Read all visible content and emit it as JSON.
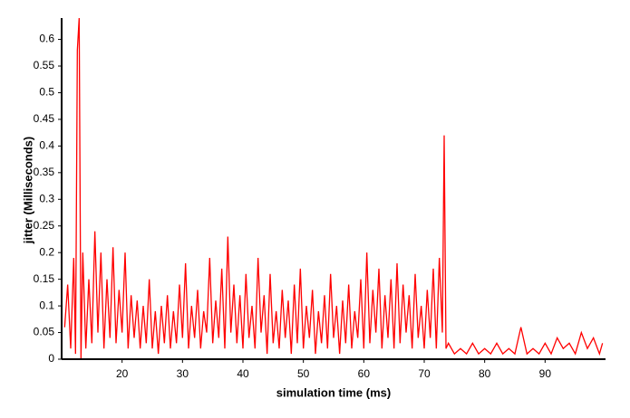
{
  "chart_data": {
    "type": "line",
    "x_label": "simulation time (ms)",
    "y_label": "jitter (Milliseconds)",
    "color": "#ff0000",
    "xlim": [
      10,
      100
    ],
    "xticks": [
      20,
      30,
      40,
      50,
      60,
      70,
      80,
      90
    ],
    "ylim": [
      0,
      0.64
    ],
    "yticks": [
      0,
      0.05,
      0.1,
      0.15,
      0.2,
      0.25,
      0.3,
      0.35,
      0.4,
      0.45,
      0.5,
      0.55,
      0.6
    ],
    "grid": false,
    "x": [
      10.5,
      11,
      11.5,
      12,
      12.3,
      12.6,
      12.9,
      13.2,
      13.5,
      14,
      14.5,
      15,
      15.5,
      16,
      16.5,
      17,
      17.5,
      18,
      18.5,
      19,
      19.5,
      20,
      20.5,
      21,
      21.5,
      22,
      22.5,
      23,
      23.5,
      24,
      24.5,
      25,
      25.5,
      26,
      26.5,
      27,
      27.5,
      28,
      28.5,
      29,
      29.5,
      30,
      30.5,
      31,
      31.5,
      32,
      32.5,
      33,
      33.5,
      34,
      34.5,
      35,
      35.5,
      36,
      36.5,
      37,
      37.5,
      38,
      38.5,
      39,
      39.5,
      40,
      40.5,
      41,
      41.5,
      42,
      42.5,
      43,
      43.5,
      44,
      44.5,
      45,
      45.5,
      46,
      46.5,
      47,
      47.5,
      48,
      48.5,
      49,
      49.5,
      50,
      50.5,
      51,
      51.5,
      52,
      52.5,
      53,
      53.5,
      54,
      54.5,
      55,
      55.5,
      56,
      56.5,
      57,
      57.5,
      58,
      58.5,
      59,
      59.5,
      60,
      60.5,
      61,
      61.5,
      62,
      62.5,
      63,
      63.5,
      64,
      64.5,
      65,
      65.5,
      66,
      66.5,
      67,
      67.5,
      68,
      68.5,
      69,
      69.5,
      70,
      70.5,
      71,
      71.5,
      72,
      72.5,
      73,
      73.3,
      73.6,
      74,
      75,
      76,
      77,
      78,
      79,
      80,
      81,
      82,
      83,
      84,
      85,
      86,
      87,
      88,
      89,
      90,
      91,
      92,
      93,
      94,
      95,
      96,
      97,
      98,
      99,
      99.5
    ],
    "values": [
      0.06,
      0.14,
      0.02,
      0.19,
      0.01,
      0.58,
      0.64,
      0.0,
      0.2,
      0.02,
      0.15,
      0.03,
      0.24,
      0.05,
      0.2,
      0.02,
      0.15,
      0.04,
      0.21,
      0.03,
      0.13,
      0.05,
      0.2,
      0.02,
      0.12,
      0.04,
      0.11,
      0.02,
      0.1,
      0.03,
      0.15,
      0.02,
      0.09,
      0.01,
      0.1,
      0.03,
      0.12,
      0.02,
      0.09,
      0.03,
      0.14,
      0.04,
      0.18,
      0.02,
      0.1,
      0.04,
      0.13,
      0.02,
      0.09,
      0.05,
      0.19,
      0.03,
      0.11,
      0.04,
      0.17,
      0.02,
      0.23,
      0.05,
      0.14,
      0.03,
      0.12,
      0.02,
      0.16,
      0.04,
      0.1,
      0.02,
      0.19,
      0.05,
      0.12,
      0.01,
      0.16,
      0.03,
      0.09,
      0.02,
      0.13,
      0.04,
      0.11,
      0.01,
      0.14,
      0.03,
      0.17,
      0.02,
      0.1,
      0.04,
      0.13,
      0.01,
      0.09,
      0.03,
      0.12,
      0.02,
      0.16,
      0.04,
      0.1,
      0.01,
      0.11,
      0.03,
      0.14,
      0.02,
      0.09,
      0.04,
      0.15,
      0.02,
      0.2,
      0.03,
      0.13,
      0.05,
      0.17,
      0.02,
      0.12,
      0.04,
      0.15,
      0.02,
      0.18,
      0.03,
      0.14,
      0.05,
      0.12,
      0.02,
      0.16,
      0.04,
      0.1,
      0.02,
      0.13,
      0.04,
      0.17,
      0.02,
      0.19,
      0.05,
      0.42,
      0.02,
      0.03,
      0.01,
      0.02,
      0.01,
      0.03,
      0.01,
      0.02,
      0.01,
      0.03,
      0.01,
      0.02,
      0.01,
      0.06,
      0.01,
      0.02,
      0.01,
      0.03,
      0.01,
      0.04,
      0.02,
      0.03,
      0.01,
      0.05,
      0.02,
      0.04,
      0.01,
      0.03
    ]
  }
}
